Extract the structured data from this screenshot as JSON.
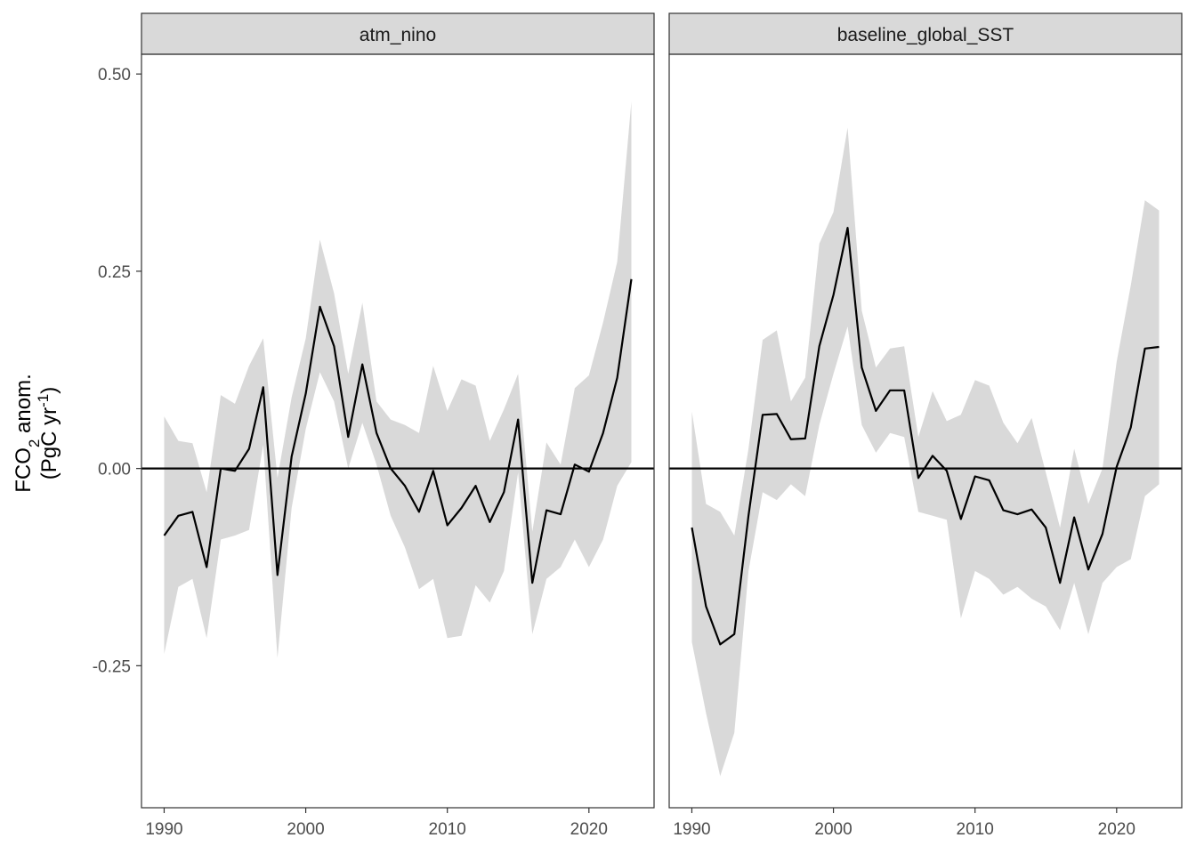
{
  "chart_data": {
    "type": "line",
    "ylabel_main": "FCO",
    "ylabel_sub": "2",
    "ylabel_rest": " anom.",
    "ylabel_unit_pre": "(PgC yr",
    "ylabel_unit_sup": "-1",
    "ylabel_unit_post": ")",
    "xlim": [
      1988.4,
      2024.6
    ],
    "ylim": [
      -0.43,
      0.525
    ],
    "x_ticks": [
      1990,
      2000,
      2010,
      2020
    ],
    "x_tick_labels": [
      "1990",
      "2000",
      "2010",
      "2020"
    ],
    "y_ticks": [
      -0.25,
      0.0,
      0.25,
      0.5
    ],
    "y_tick_labels": [
      "-0.25",
      "0.00",
      "0.25",
      "0.50"
    ],
    "hline": 0,
    "grid": false,
    "colors": {
      "line": "#000000",
      "ribbon": "#d9d9d9",
      "strip_fill": "#d9d9d9",
      "frame": "#333333"
    },
    "panels": [
      {
        "title": "atm_nino",
        "x": [
          1990,
          1991,
          1992,
          1993,
          1994,
          1995,
          1996,
          1997,
          1998,
          1999,
          2000,
          2001,
          2002,
          2003,
          2004,
          2005,
          2006,
          2007,
          2008,
          2009,
          2010,
          2011,
          2012,
          2013,
          2014,
          2015,
          2016,
          2017,
          2018,
          2019,
          2020,
          2021,
          2022,
          2023
        ],
        "y": [
          -0.085,
          -0.06,
          -0.055,
          -0.125,
          0.0,
          -0.003,
          0.025,
          0.103,
          -0.135,
          0.015,
          0.095,
          0.205,
          0.155,
          0.04,
          0.132,
          0.045,
          0.0,
          -0.022,
          -0.055,
          -0.003,
          -0.072,
          -0.05,
          -0.022,
          -0.068,
          -0.03,
          0.062,
          -0.145,
          -0.053,
          -0.058,
          0.005,
          -0.004,
          0.045,
          0.115,
          0.24
        ],
        "lower": [
          -0.235,
          -0.15,
          -0.14,
          -0.215,
          -0.09,
          -0.085,
          -0.078,
          0.03,
          -0.24,
          -0.05,
          0.05,
          0.122,
          0.085,
          0.0,
          0.058,
          0.005,
          -0.06,
          -0.1,
          -0.153,
          -0.14,
          -0.215,
          -0.212,
          -0.148,
          -0.17,
          -0.13,
          -0.005,
          -0.21,
          -0.14,
          -0.125,
          -0.09,
          -0.125,
          -0.09,
          -0.022,
          0.008
        ],
        "upper": [
          0.066,
          0.035,
          0.032,
          -0.03,
          0.093,
          0.082,
          0.13,
          0.165,
          -0.012,
          0.09,
          0.165,
          0.29,
          0.222,
          0.12,
          0.21,
          0.085,
          0.062,
          0.055,
          0.045,
          0.13,
          0.073,
          0.113,
          0.105,
          0.035,
          0.075,
          0.12,
          -0.08,
          0.033,
          0.005,
          0.102,
          0.118,
          0.185,
          0.262,
          0.465
        ]
      },
      {
        "title": "baseline_global_SST",
        "x": [
          1990,
          1991,
          1992,
          1993,
          1994,
          1995,
          1996,
          1997,
          1998,
          1999,
          2000,
          2001,
          2002,
          2003,
          2004,
          2005,
          2006,
          2007,
          2008,
          2009,
          2010,
          2011,
          2012,
          2013,
          2014,
          2015,
          2016,
          2017,
          2018,
          2019,
          2020,
          2021,
          2022,
          2023
        ],
        "y": [
          -0.075,
          -0.175,
          -0.223,
          -0.21,
          -0.06,
          0.068,
          0.069,
          0.037,
          0.038,
          0.155,
          0.22,
          0.305,
          0.128,
          0.073,
          0.099,
          0.099,
          -0.012,
          0.016,
          -0.003,
          -0.064,
          -0.01,
          -0.015,
          -0.053,
          -0.058,
          -0.052,
          -0.075,
          -0.145,
          -0.062,
          -0.128,
          -0.083,
          0.002,
          0.052,
          0.152,
          0.154
        ],
        "lower": [
          -0.22,
          -0.31,
          -0.39,
          -0.335,
          -0.13,
          -0.03,
          -0.04,
          -0.02,
          -0.035,
          0.055,
          0.12,
          0.18,
          0.055,
          0.02,
          0.045,
          0.04,
          -0.055,
          -0.06,
          -0.065,
          -0.19,
          -0.13,
          -0.14,
          -0.16,
          -0.15,
          -0.165,
          -0.175,
          -0.205,
          -0.145,
          -0.21,
          -0.145,
          -0.125,
          -0.115,
          -0.035,
          -0.02
        ],
        "upper": [
          0.072,
          -0.045,
          -0.055,
          -0.085,
          0.025,
          0.163,
          0.175,
          0.085,
          0.115,
          0.285,
          0.325,
          0.432,
          0.2,
          0.128,
          0.152,
          0.155,
          0.04,
          0.098,
          0.06,
          0.068,
          0.112,
          0.105,
          0.058,
          0.032,
          0.064,
          -0.005,
          -0.075,
          0.025,
          -0.045,
          0.0,
          0.135,
          0.232,
          0.34,
          0.327
        ]
      }
    ]
  }
}
